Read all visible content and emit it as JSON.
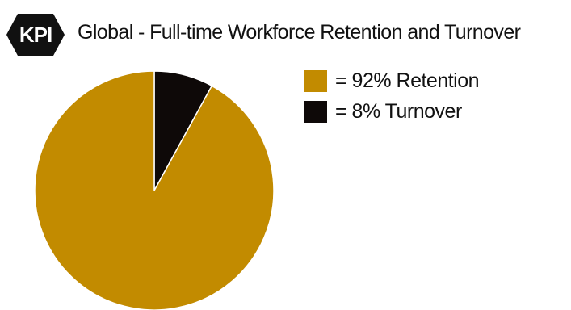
{
  "badge": {
    "text": "KPI",
    "color": "#111111"
  },
  "chart_data": {
    "type": "pie",
    "title": "Global - Full-time Workforce Retention and Turnover",
    "slices": [
      {
        "label": "= 92% Retention",
        "value": 92,
        "color": "#c28b00"
      },
      {
        "label": "= 8% Turnover",
        "value": 8,
        "color": "#0e0908"
      }
    ],
    "legend_position": "right"
  }
}
